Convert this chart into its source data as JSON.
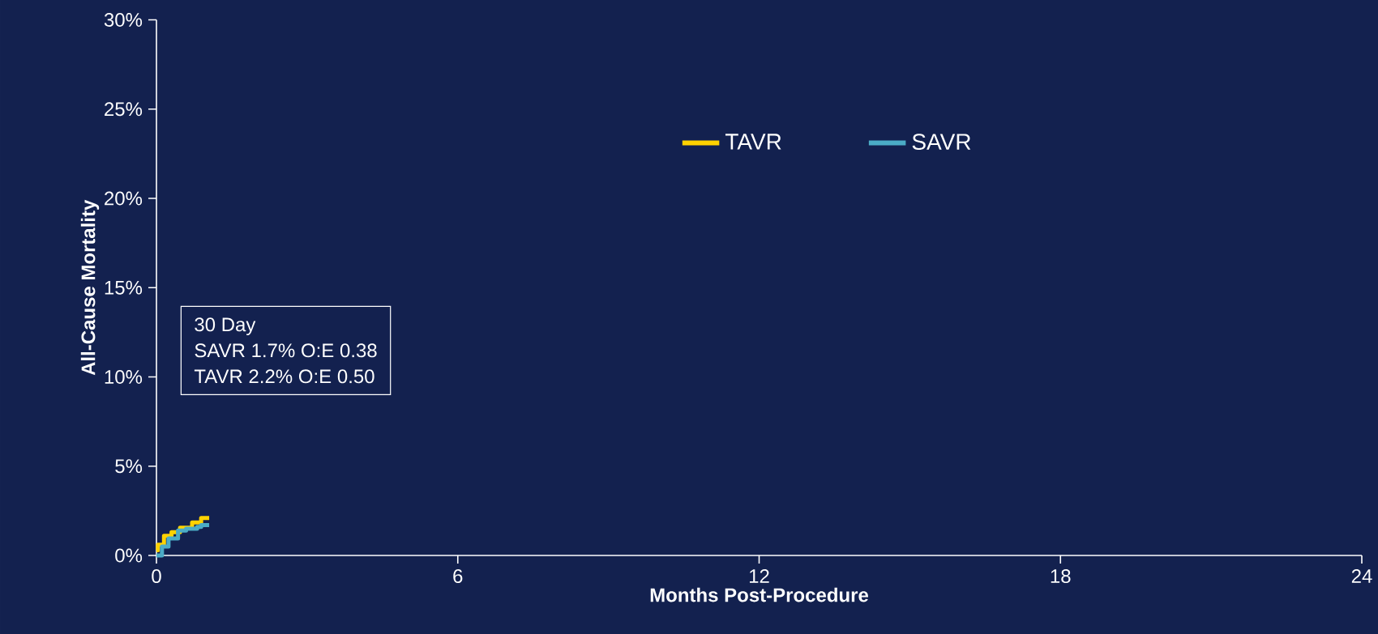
{
  "chart_data": {
    "type": "step",
    "xlabel": "Months Post-Procedure",
    "ylabel": "All-Cause Mortality",
    "xlim": [
      0,
      24
    ],
    "xticks": [
      0,
      6,
      12,
      18,
      24
    ],
    "ylim": [
      0,
      30
    ],
    "yticks": [
      {
        "value": 0,
        "label": "0%"
      },
      {
        "value": 5,
        "label": "5%"
      },
      {
        "value": 10,
        "label": "10%"
      },
      {
        "value": 15,
        "label": "15%"
      },
      {
        "value": 20,
        "label": "20%"
      },
      {
        "value": 25,
        "label": "25%"
      },
      {
        "value": 30,
        "label": "30%"
      }
    ],
    "series": [
      {
        "name": "TAVR",
        "color": "#ffd200",
        "x": [
          0,
          0.03,
          0.15,
          0.3,
          0.47,
          0.71,
          0.89,
          1.05
        ],
        "values": [
          0.3,
          0.6,
          1.1,
          1.3,
          1.55,
          1.85,
          2.1,
          2.1
        ]
      },
      {
        "name": "SAVR",
        "color": "#4bacc6",
        "x": [
          0,
          0.11,
          0.24,
          0.43,
          0.59,
          0.81,
          0.89,
          1.05
        ],
        "values": [
          0,
          0.5,
          0.95,
          1.4,
          1.5,
          1.6,
          1.7,
          1.7
        ]
      }
    ],
    "legend": "top right",
    "grid": false,
    "annotations": [
      "30 Day",
      "SAVR 1.7%   O:E 0.38",
      "TAVR 2.2%   O:E 0.50"
    ]
  }
}
